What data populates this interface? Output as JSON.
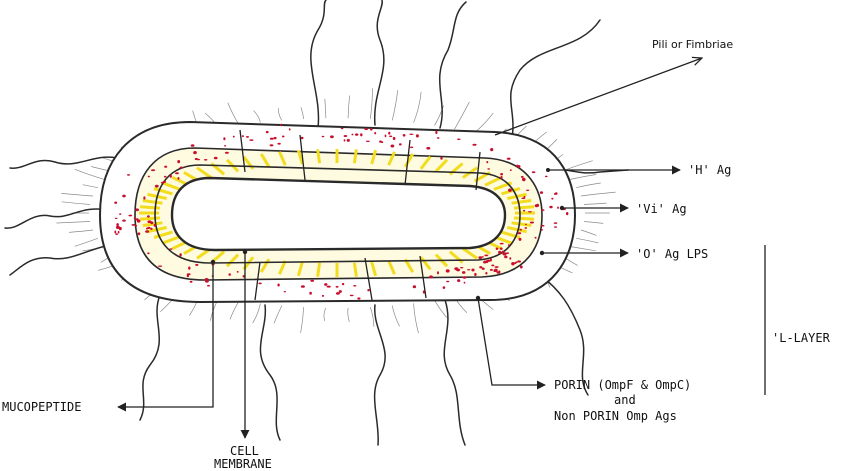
{
  "labels": {
    "pili": "Pili or Fimbriae",
    "h_ag": "'H' Ag",
    "vi_ag": "'Vi' Ag",
    "o_ag": "'O' Ag LPS",
    "l_layer": "'L-LAYER",
    "porin_line1": "PORIN (OmpF & OmpC)",
    "porin_line2": "and",
    "porin_line3": "Non PORIN Omp Ags",
    "mucopeptide": "MUCOPEPTIDE",
    "cell": "CELL",
    "membrane": "MEMBRANE"
  },
  "colors": {
    "outline": "#2a2a2a",
    "capsule_dots": "#c8102e",
    "lps_yellow": "#f2dc1e",
    "background": "#ffffff"
  }
}
